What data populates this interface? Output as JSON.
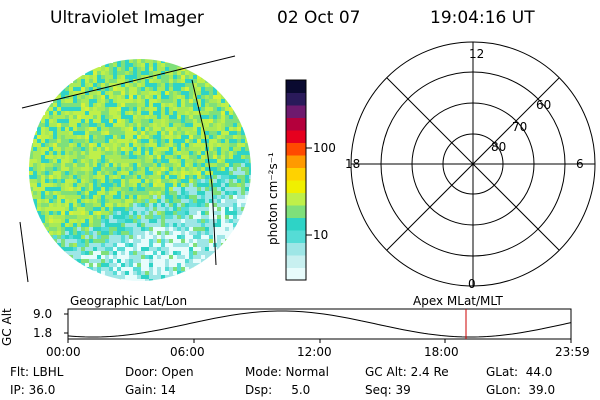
{
  "header": {
    "instrument": "Ultraviolet Imager",
    "date": "02 Oct 07",
    "time": "19:04:16 UT"
  },
  "colorbar": {
    "label": "photon cm⁻²s⁻¹",
    "ticks": [
      {
        "label": "100",
        "value": 100
      },
      {
        "label": "10",
        "value": 10
      }
    ],
    "colors": [
      "#e8fcfc",
      "#c8f0f0",
      "#9ee6e6",
      "#55dcd6",
      "#2ed3c6",
      "#7fe07a",
      "#bff04a",
      "#f0f000",
      "#ffd200",
      "#ff9a00",
      "#ff4a00",
      "#e6001e",
      "#b4003c",
      "#6e1a6e",
      "#2a1a5a",
      "#0a0a30"
    ]
  },
  "polar": {
    "labels": {
      "top": "12",
      "left": "18",
      "right": "6",
      "bottom": "0"
    },
    "rings": [
      "60",
      "70",
      "80"
    ]
  },
  "timeline": {
    "left_title": "Geographic Lat/Lon",
    "right_title": "Apex MLat/MLT",
    "axis_label": "GC Alt",
    "y_ticks": [
      "9.0",
      "1.8"
    ],
    "x_ticks": [
      "00:00",
      "06:00",
      "12:00",
      "18:00",
      "23:59"
    ]
  },
  "footer": {
    "flt": "Flt: LBHL",
    "ip": "IP: 36.0",
    "door": "Door: Open",
    "gain": "Gain: 14",
    "mode": "Mode: Normal",
    "dsp": "Dsp:     5.0",
    "gcalt": "GC Alt: 2.4 Re",
    "seq": "Seq: 39",
    "glat": "GLat:  44.0",
    "glon": "GLon:  39.0"
  }
}
